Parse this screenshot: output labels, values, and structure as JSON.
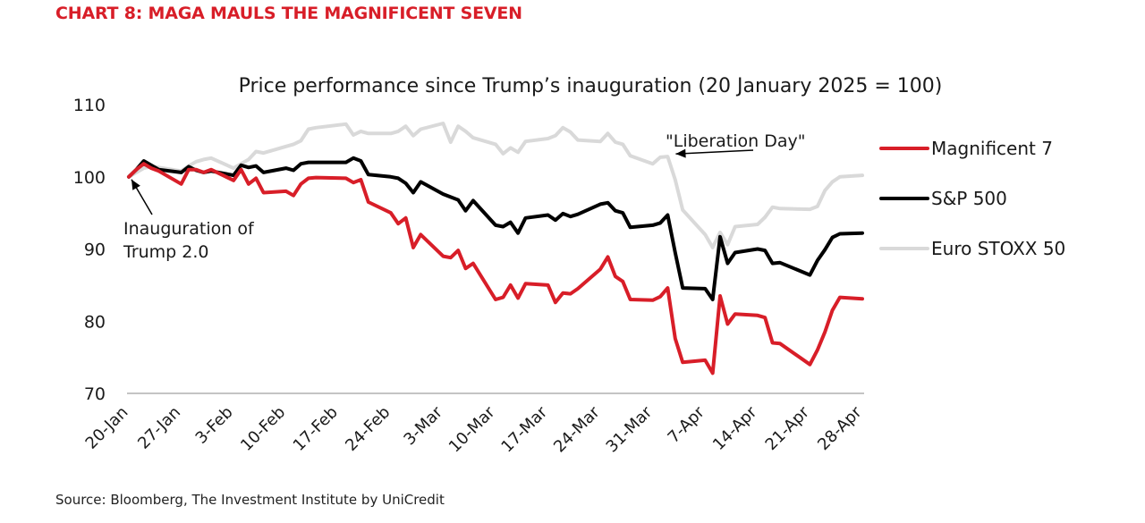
{
  "heading": "CHART 8: MAGA MAULS THE MAGNIFICENT SEVEN",
  "source": "Source: Bloomberg, The Investment Institute by UniCredit",
  "chart_data": {
    "type": "line",
    "title": "Price performance since Trump’s inauguration (20 January 2025 = 100)",
    "ylim": [
      70,
      110
    ],
    "yticks": [
      70,
      80,
      90,
      100,
      110
    ],
    "x_ticks": [
      "20-Jan",
      "27-Jan",
      "3-Feb",
      "10-Feb",
      "17-Feb",
      "24-Feb",
      "3-Mar",
      "10-Mar",
      "17-Mar",
      "24-Mar",
      "31-Mar",
      "7-Apr",
      "14-Apr",
      "21-Apr",
      "28-Apr"
    ],
    "x_start": "2025-01-20",
    "grid": false,
    "legend_position": "right",
    "series": [
      {
        "name": "Magnificent 7",
        "color": "#d81e28",
        "points": [
          [
            "2025-01-20",
            100.0
          ],
          [
            "2025-01-21",
            101.0
          ],
          [
            "2025-01-22",
            101.8
          ],
          [
            "2025-01-23",
            101.2
          ],
          [
            "2025-01-24",
            100.8
          ],
          [
            "2025-01-27",
            99.0
          ],
          [
            "2025-01-28",
            101.0
          ],
          [
            "2025-01-29",
            101.0
          ],
          [
            "2025-01-30",
            100.6
          ],
          [
            "2025-01-31",
            101.0
          ],
          [
            "2025-02-03",
            99.5
          ],
          [
            "2025-02-04",
            101.0
          ],
          [
            "2025-02-05",
            99.0
          ],
          [
            "2025-02-06",
            99.8
          ],
          [
            "2025-02-07",
            97.8
          ],
          [
            "2025-02-10",
            98.0
          ],
          [
            "2025-02-11",
            97.4
          ],
          [
            "2025-02-12",
            99.0
          ],
          [
            "2025-02-13",
            99.8
          ],
          [
            "2025-02-14",
            99.9
          ],
          [
            "2025-02-18",
            99.8
          ],
          [
            "2025-02-19",
            99.2
          ],
          [
            "2025-02-20",
            99.6
          ],
          [
            "2025-02-21",
            96.5
          ],
          [
            "2025-02-24",
            95.0
          ],
          [
            "2025-02-25",
            93.5
          ],
          [
            "2025-02-26",
            94.3
          ],
          [
            "2025-02-27",
            90.2
          ],
          [
            "2025-02-28",
            92.0
          ],
          [
            "2025-03-03",
            89.0
          ],
          [
            "2025-03-04",
            88.8
          ],
          [
            "2025-03-05",
            89.8
          ],
          [
            "2025-03-06",
            87.3
          ],
          [
            "2025-03-07",
            88.0
          ],
          [
            "2025-03-10",
            83.0
          ],
          [
            "2025-03-11",
            83.3
          ],
          [
            "2025-03-12",
            85.0
          ],
          [
            "2025-03-13",
            83.2
          ],
          [
            "2025-03-14",
            85.2
          ],
          [
            "2025-03-17",
            85.0
          ],
          [
            "2025-03-18",
            82.6
          ],
          [
            "2025-03-19",
            83.9
          ],
          [
            "2025-03-20",
            83.8
          ],
          [
            "2025-03-21",
            84.5
          ],
          [
            "2025-03-24",
            87.2
          ],
          [
            "2025-03-25",
            88.9
          ],
          [
            "2025-03-26",
            86.2
          ],
          [
            "2025-03-27",
            85.5
          ],
          [
            "2025-03-28",
            83.0
          ],
          [
            "2025-03-31",
            82.9
          ],
          [
            "2025-04-01",
            83.4
          ],
          [
            "2025-04-02",
            84.6
          ],
          [
            "2025-04-03",
            77.6
          ],
          [
            "2025-04-04",
            74.3
          ],
          [
            "2025-04-07",
            74.6
          ],
          [
            "2025-04-08",
            72.8
          ],
          [
            "2025-04-09",
            83.5
          ],
          [
            "2025-04-10",
            79.6
          ],
          [
            "2025-04-11",
            81.0
          ],
          [
            "2025-04-14",
            80.8
          ],
          [
            "2025-04-15",
            80.5
          ],
          [
            "2025-04-16",
            77.0
          ],
          [
            "2025-04-17",
            76.9
          ],
          [
            "2025-04-21",
            74.0
          ],
          [
            "2025-04-22",
            76.0
          ],
          [
            "2025-04-23",
            78.5
          ],
          [
            "2025-04-24",
            81.5
          ],
          [
            "2025-04-25",
            83.3
          ],
          [
            "2025-04-28",
            83.1
          ]
        ]
      },
      {
        "name": "S&P 500",
        "color": "#000000",
        "points": [
          [
            "2025-01-20",
            100.0
          ],
          [
            "2025-01-21",
            101.0
          ],
          [
            "2025-01-22",
            102.2
          ],
          [
            "2025-01-23",
            101.6
          ],
          [
            "2025-01-24",
            101.0
          ],
          [
            "2025-01-27",
            100.6
          ],
          [
            "2025-01-28",
            101.4
          ],
          [
            "2025-01-29",
            100.9
          ],
          [
            "2025-01-30",
            100.6
          ],
          [
            "2025-01-31",
            100.8
          ],
          [
            "2025-02-03",
            100.2
          ],
          [
            "2025-02-04",
            101.6
          ],
          [
            "2025-02-05",
            101.3
          ],
          [
            "2025-02-06",
            101.5
          ],
          [
            "2025-02-07",
            100.6
          ],
          [
            "2025-02-10",
            101.2
          ],
          [
            "2025-02-11",
            100.9
          ],
          [
            "2025-02-12",
            101.8
          ],
          [
            "2025-02-13",
            102.0
          ],
          [
            "2025-02-14",
            102.0
          ],
          [
            "2025-02-18",
            102.0
          ],
          [
            "2025-02-19",
            102.6
          ],
          [
            "2025-02-20",
            102.2
          ],
          [
            "2025-02-21",
            100.3
          ],
          [
            "2025-02-24",
            100.0
          ],
          [
            "2025-02-25",
            99.8
          ],
          [
            "2025-02-26",
            99.1
          ],
          [
            "2025-02-27",
            97.8
          ],
          [
            "2025-02-28",
            99.3
          ],
          [
            "2025-03-03",
            97.6
          ],
          [
            "2025-03-04",
            97.2
          ],
          [
            "2025-03-05",
            96.8
          ],
          [
            "2025-03-06",
            95.3
          ],
          [
            "2025-03-07",
            96.7
          ],
          [
            "2025-03-10",
            93.3
          ],
          [
            "2025-03-11",
            93.1
          ],
          [
            "2025-03-12",
            93.7
          ],
          [
            "2025-03-13",
            92.2
          ],
          [
            "2025-03-14",
            94.3
          ],
          [
            "2025-03-17",
            94.7
          ],
          [
            "2025-03-18",
            94.0
          ],
          [
            "2025-03-19",
            94.9
          ],
          [
            "2025-03-20",
            94.5
          ],
          [
            "2025-03-21",
            94.8
          ],
          [
            "2025-03-24",
            96.2
          ],
          [
            "2025-03-25",
            96.4
          ],
          [
            "2025-03-26",
            95.3
          ],
          [
            "2025-03-27",
            95.0
          ],
          [
            "2025-03-28",
            93.0
          ],
          [
            "2025-03-31",
            93.3
          ],
          [
            "2025-04-01",
            93.6
          ],
          [
            "2025-04-02",
            94.7
          ],
          [
            "2025-04-03",
            89.5
          ],
          [
            "2025-04-04",
            84.6
          ],
          [
            "2025-04-07",
            84.5
          ],
          [
            "2025-04-08",
            83.0
          ],
          [
            "2025-04-09",
            91.7
          ],
          [
            "2025-04-10",
            88.0
          ],
          [
            "2025-04-11",
            89.5
          ],
          [
            "2025-04-14",
            90.0
          ],
          [
            "2025-04-15",
            89.8
          ],
          [
            "2025-04-16",
            88.0
          ],
          [
            "2025-04-17",
            88.1
          ],
          [
            "2025-04-21",
            86.4
          ],
          [
            "2025-04-22",
            88.4
          ],
          [
            "2025-04-23",
            89.9
          ],
          [
            "2025-04-24",
            91.6
          ],
          [
            "2025-04-25",
            92.1
          ],
          [
            "2025-04-28",
            92.2
          ]
        ]
      },
      {
        "name": "Euro STOXX 50",
        "color": "#d9d9d9",
        "points": [
          [
            "2025-01-20",
            100.0
          ],
          [
            "2025-01-21",
            100.6
          ],
          [
            "2025-01-22",
            101.2
          ],
          [
            "2025-01-23",
            101.4
          ],
          [
            "2025-01-24",
            101.3
          ],
          [
            "2025-01-27",
            100.8
          ],
          [
            "2025-01-28",
            101.5
          ],
          [
            "2025-01-29",
            102.1
          ],
          [
            "2025-01-30",
            102.4
          ],
          [
            "2025-01-31",
            102.6
          ],
          [
            "2025-02-03",
            101.2
          ],
          [
            "2025-02-04",
            101.8
          ],
          [
            "2025-02-05",
            102.4
          ],
          [
            "2025-02-06",
            103.5
          ],
          [
            "2025-02-07",
            103.3
          ],
          [
            "2025-02-10",
            104.2
          ],
          [
            "2025-02-11",
            104.5
          ],
          [
            "2025-02-12",
            105.0
          ],
          [
            "2025-02-13",
            106.6
          ],
          [
            "2025-02-14",
            106.8
          ],
          [
            "2025-02-18",
            107.3
          ],
          [
            "2025-02-19",
            105.8
          ],
          [
            "2025-02-20",
            106.3
          ],
          [
            "2025-02-21",
            106.0
          ],
          [
            "2025-02-24",
            106.0
          ],
          [
            "2025-02-25",
            106.3
          ],
          [
            "2025-02-26",
            107.0
          ],
          [
            "2025-02-27",
            105.7
          ],
          [
            "2025-02-28",
            106.6
          ],
          [
            "2025-03-03",
            107.4
          ],
          [
            "2025-03-04",
            104.8
          ],
          [
            "2025-03-05",
            107.0
          ],
          [
            "2025-03-06",
            106.3
          ],
          [
            "2025-03-07",
            105.4
          ],
          [
            "2025-03-10",
            104.5
          ],
          [
            "2025-03-11",
            103.2
          ],
          [
            "2025-03-12",
            104.0
          ],
          [
            "2025-03-13",
            103.4
          ],
          [
            "2025-03-14",
            104.9
          ],
          [
            "2025-03-17",
            105.3
          ],
          [
            "2025-03-18",
            105.7
          ],
          [
            "2025-03-19",
            106.8
          ],
          [
            "2025-03-20",
            106.2
          ],
          [
            "2025-03-21",
            105.1
          ],
          [
            "2025-03-24",
            104.9
          ],
          [
            "2025-03-25",
            106.0
          ],
          [
            "2025-03-26",
            104.8
          ],
          [
            "2025-03-27",
            104.5
          ],
          [
            "2025-03-28",
            102.9
          ],
          [
            "2025-03-31",
            101.8
          ],
          [
            "2025-04-01",
            102.7
          ],
          [
            "2025-04-02",
            102.8
          ],
          [
            "2025-04-03",
            99.6
          ],
          [
            "2025-04-04",
            95.4
          ],
          [
            "2025-04-07",
            92.0
          ],
          [
            "2025-04-08",
            90.2
          ],
          [
            "2025-04-09",
            92.3
          ],
          [
            "2025-04-10",
            90.6
          ],
          [
            "2025-04-11",
            93.1
          ],
          [
            "2025-04-14",
            93.4
          ],
          [
            "2025-04-15",
            94.4
          ],
          [
            "2025-04-16",
            95.8
          ],
          [
            "2025-04-17",
            95.6
          ],
          [
            "2025-04-21",
            95.5
          ],
          [
            "2025-04-22",
            95.9
          ],
          [
            "2025-04-23",
            98.1
          ],
          [
            "2025-04-24",
            99.3
          ],
          [
            "2025-04-25",
            100.0
          ],
          [
            "2025-04-28",
            100.2
          ]
        ]
      }
    ],
    "annotations": [
      {
        "text": [
          "Inauguration of",
          "Trump 2.0"
        ],
        "arrow_to": [
          "2025-01-20",
          100.0
        ]
      },
      {
        "text": [
          "\"Liberation Day\""
        ],
        "arrow_to": [
          "2025-04-02",
          102.8
        ]
      }
    ]
  }
}
